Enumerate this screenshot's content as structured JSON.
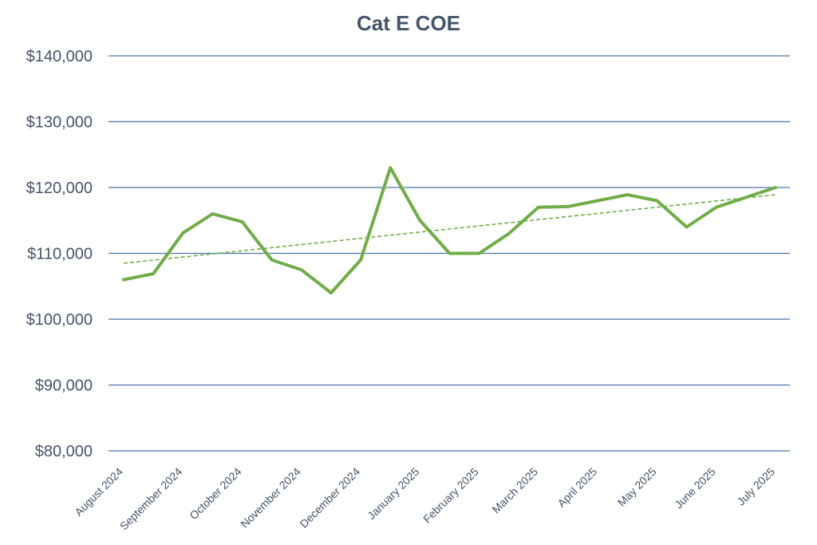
{
  "chart_data": {
    "type": "line",
    "title": "Cat E COE",
    "xlabel": "",
    "ylabel": "",
    "ylim": [
      80000,
      140000
    ],
    "y_ticks": [
      "$80,000",
      "$90,000",
      "$100,000",
      "$110,000",
      "$120,000",
      "$130,000",
      "$140,000"
    ],
    "x_tick_labels": [
      "August 2024",
      "September 2024",
      "October 2024",
      "November 2024",
      "December 2024",
      "January 2025",
      "February 2025",
      "March 2025",
      "April 2025",
      "May 2025",
      "June 2025",
      "July 2025"
    ],
    "grid": true,
    "legend": "none",
    "series": [
      {
        "values": [
          106000,
          106900,
          113100,
          116000,
          114800,
          109000,
          107500,
          104000,
          109000,
          123000,
          115000,
          110000,
          110000,
          113000,
          117000,
          117100,
          118000,
          118900,
          118000,
          114000,
          117000,
          118500,
          120000
        ],
        "color": "#70ad47",
        "style": "solid"
      }
    ],
    "trendline": {
      "type": "linear",
      "start": 108500,
      "end": 118900,
      "color": "#70ad47",
      "style": "dashed"
    },
    "colors": {
      "title": "#44546a",
      "ticks": "#44546a",
      "grid": "#4a73a6",
      "line": "#70ad47"
    }
  }
}
